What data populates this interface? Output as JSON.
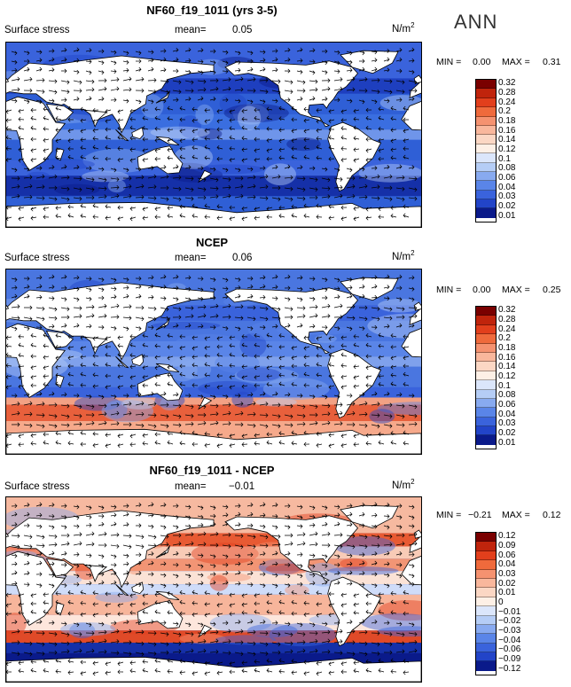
{
  "season": "ANN",
  "panels": [
    {
      "title": "NF60_f19_1011 (yrs 3-5)",
      "variable": "Surface stress",
      "mean_label": "mean=",
      "mean_value": "0.05",
      "units_base": "N/m",
      "units_exp": "2",
      "min_label": "MIN =",
      "min_value": "0.00",
      "max_label": "MAX =",
      "max_value": "0.31",
      "colorbar": {
        "ticks": [
          "0.32",
          "0.28",
          "0.24",
          "0.2",
          "0.18",
          "0.16",
          "0.14",
          "0.12",
          "0.1",
          "0.08",
          "0.06",
          "0.04",
          "0.03",
          "0.02",
          "0.01"
        ],
        "colors": [
          "#7a0000",
          "#c0240c",
          "#e23f1c",
          "#ef6a3c",
          "#f59270",
          "#f9b79c",
          "#fbd7c4",
          "#fdf0e6",
          "#dbe6fb",
          "#b5cdf6",
          "#88aaf0",
          "#5a85e8",
          "#3a63dc",
          "#2244c8",
          "#0a1a8a"
        ]
      },
      "field": "mean_a"
    },
    {
      "title": "NCEP",
      "variable": "Surface stress",
      "mean_label": "mean=",
      "mean_value": "0.06",
      "units_base": "N/m",
      "units_exp": "2",
      "min_label": "MIN =",
      "min_value": "0.00",
      "max_label": "MAX =",
      "max_value": "0.25",
      "colorbar": {
        "ticks": [
          "0.32",
          "0.28",
          "0.24",
          "0.2",
          "0.18",
          "0.16",
          "0.14",
          "0.12",
          "0.1",
          "0.08",
          "0.06",
          "0.04",
          "0.03",
          "0.02",
          "0.01"
        ],
        "colors": [
          "#7a0000",
          "#c0240c",
          "#e23f1c",
          "#ef6a3c",
          "#f59270",
          "#f9b79c",
          "#fbd7c4",
          "#fdf0e6",
          "#dbe6fb",
          "#b5cdf6",
          "#88aaf0",
          "#5a85e8",
          "#3a63dc",
          "#2244c8",
          "#0a1a8a"
        ]
      },
      "field": "mean_b"
    },
    {
      "title": "NF60_f19_1011 - NCEP",
      "variable": "Surface stress",
      "mean_label": "mean=",
      "mean_value": "−0.01",
      "units_base": "N/m",
      "units_exp": "2",
      "min_label": "MIN =",
      "min_value": "−0.21",
      "max_label": "MAX =",
      "max_value": "0.12",
      "colorbar": {
        "ticks": [
          "0.12",
          "0.09",
          "0.06",
          "0.04",
          "0.03",
          "0.02",
          "0.01",
          "0",
          "−0.01",
          "−0.02",
          "−0.03",
          "−0.04",
          "−0.06",
          "−0.09",
          "−0.12"
        ],
        "colors": [
          "#7a0000",
          "#c0240c",
          "#e23f1c",
          "#ef6a3c",
          "#f59270",
          "#f9b79c",
          "#fbd7c4",
          "#fdf0e6",
          "#dbe6fb",
          "#b5cdf6",
          "#88aaf0",
          "#5a85e8",
          "#3a63dc",
          "#2244c8",
          "#0a1a8a"
        ]
      },
      "field": "diff"
    }
  ]
}
